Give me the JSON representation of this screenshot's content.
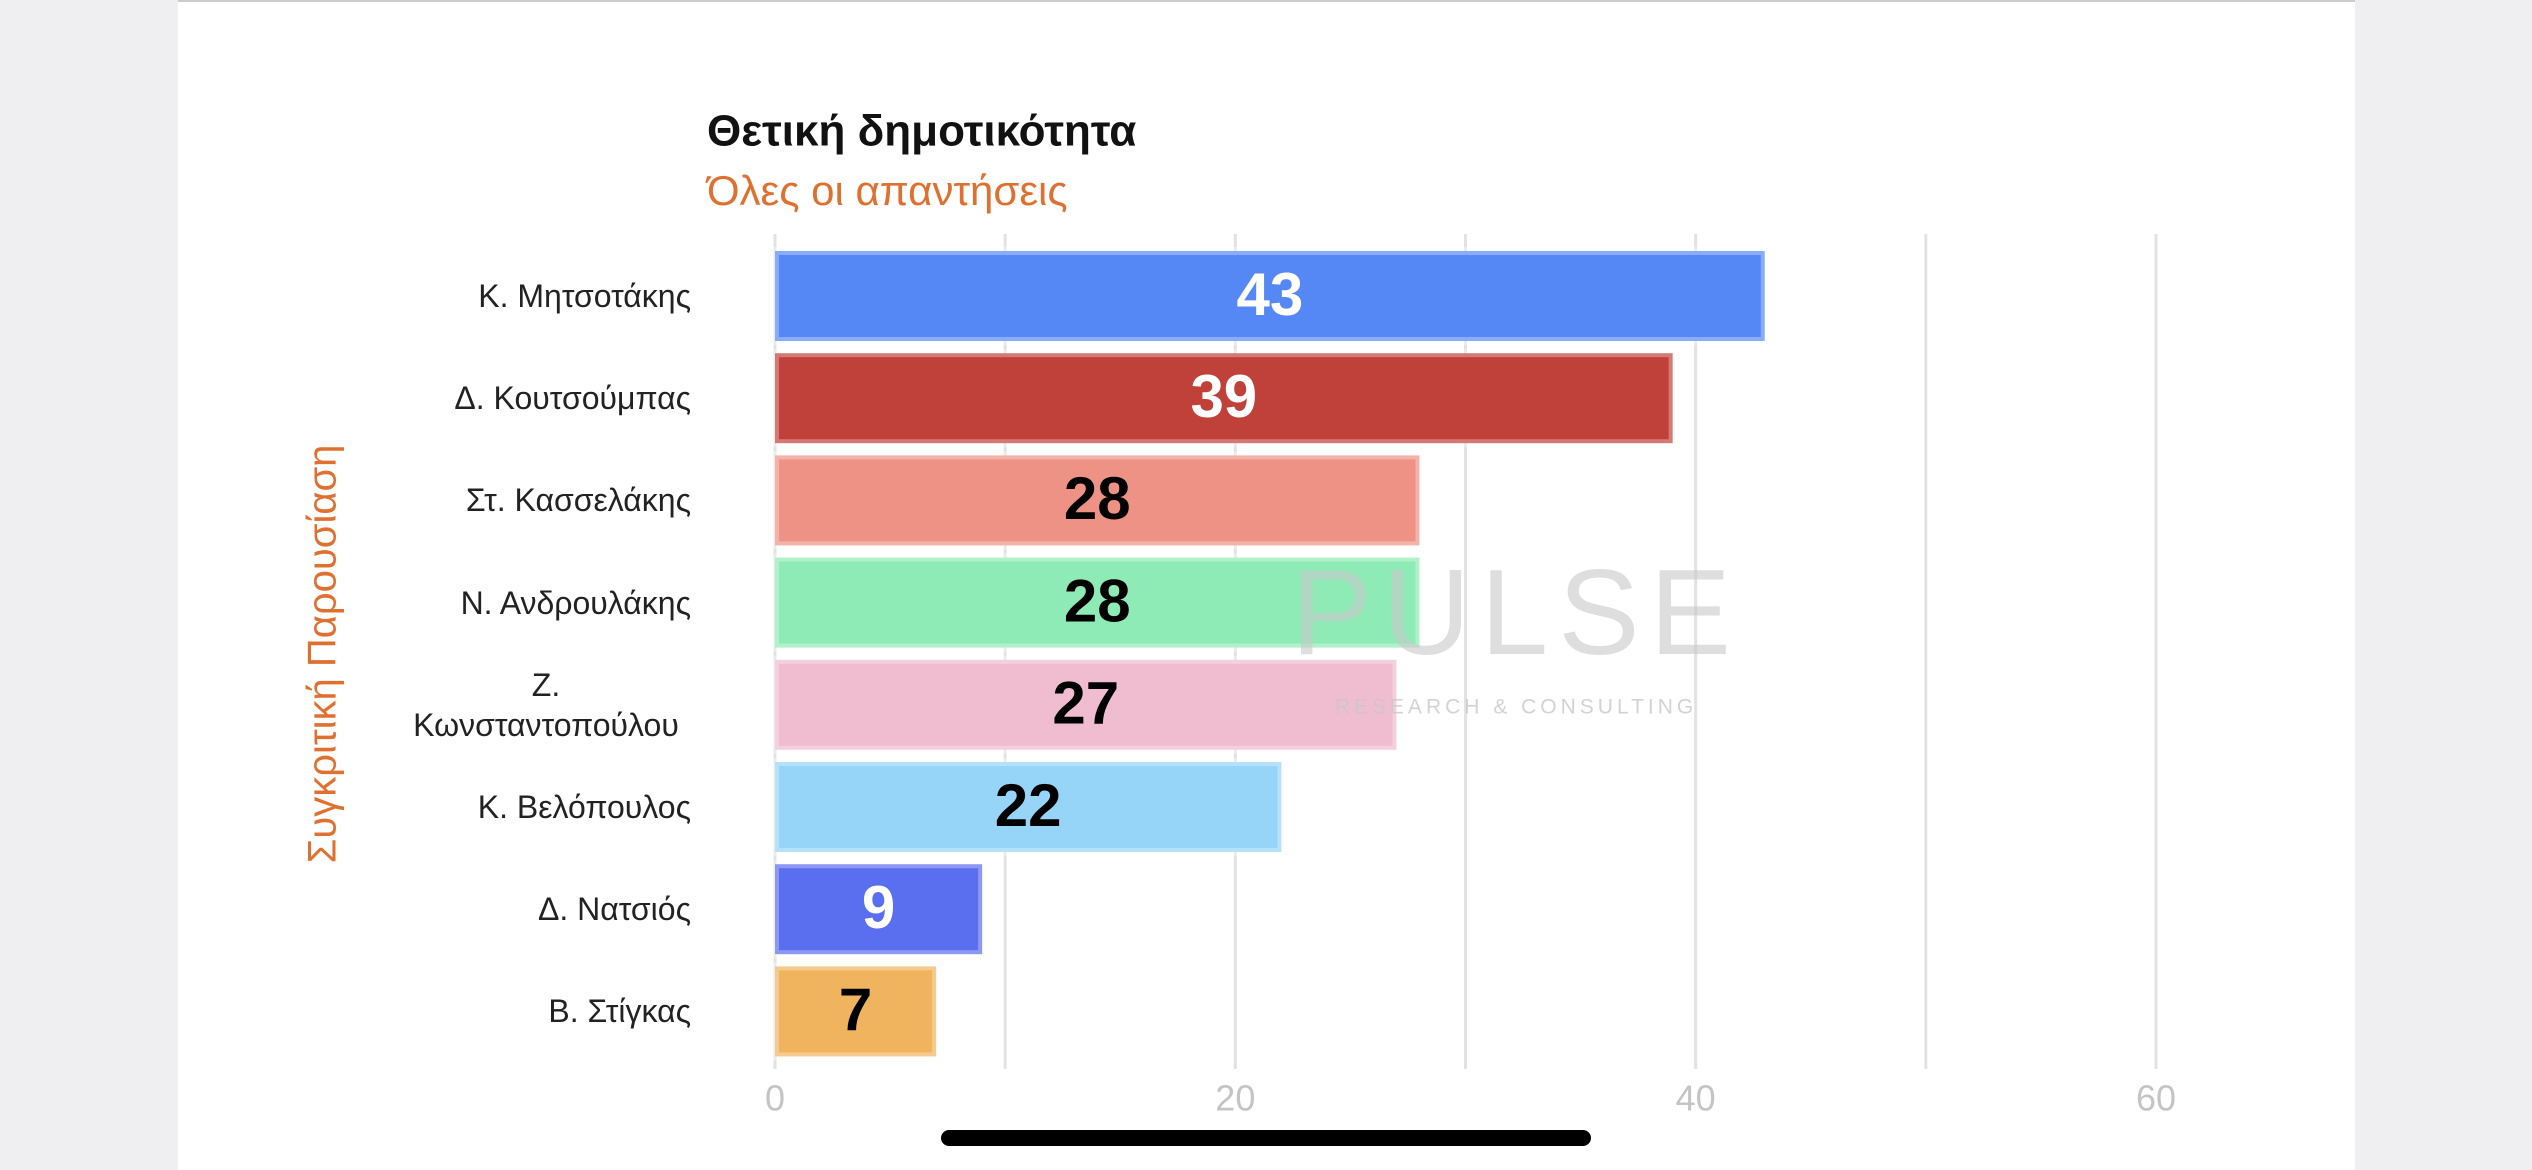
{
  "chart_data": {
    "type": "hbar",
    "title": "Θετική δημοτικότητα",
    "subtitle": "Όλες οι απαντήσεις",
    "y_label": "Συγκριτική Παρουσίαση",
    "categories": [
      "Κ. Μητσοτάκης",
      "Δ. Κουτσούμπας",
      "Στ. Κασσελάκης",
      "Ν. Ανδρουλάκης",
      "Ζ. Κωνσταντοπούλου",
      "Κ. Βελόπουλος",
      "Δ. Νατσιός",
      "Β. Στίγκας"
    ],
    "values": [
      43,
      39,
      28,
      28,
      27,
      22,
      9,
      7
    ],
    "colors": [
      "#5588f5",
      "#c0413a",
      "#ee9285",
      "#8eebb6",
      "#efbcd0",
      "#96d4f8",
      "#5a6ef0",
      "#f0b45e"
    ],
    "label_colors": [
      "#ffffff",
      "#ffffff",
      "#000000",
      "#000000",
      "#000000",
      "#000000",
      "#ffffff",
      "#000000"
    ],
    "xlim": [
      0,
      60
    ],
    "xticks": [
      0,
      20,
      40,
      60
    ],
    "minor_xticks": [
      10,
      30,
      50
    ],
    "grid": true,
    "watermark": {
      "title": "PULSE",
      "subtitle": "RESEARCH & CONSULTING"
    }
  }
}
